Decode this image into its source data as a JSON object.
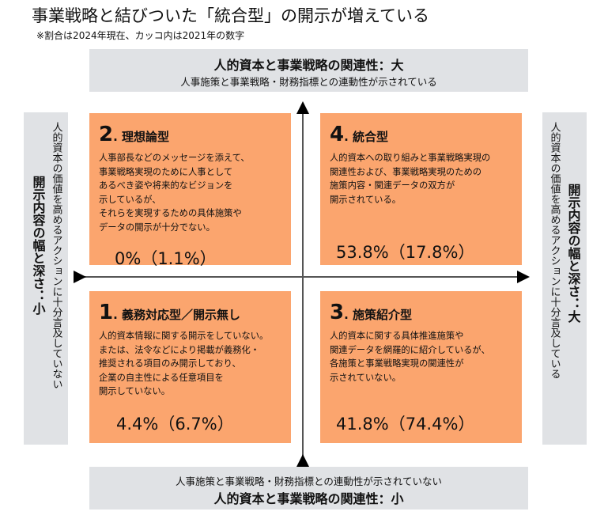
{
  "title": "事業戦略と結びついた「統合型」の開示が増えている",
  "note": "※割合は2024年現在、カッコ内は2021年の数字",
  "top": {
    "bold": "人的資本と事業戦略の関連性：大",
    "sub": "人事施策と事業戦略・財務指標との連動性が示されている"
  },
  "bottom": {
    "sub": "人事施策と事業戦略・財務指標との連動性が示されていない",
    "bold": "人的資本と事業戦略の関連性：小"
  },
  "left": {
    "sub": "人的資本の価値を高めるアクションに十分言及していない",
    "bold": "開示内容の幅と深さ：小"
  },
  "right": {
    "sub": "人的資本の価値を高めるアクションに十分言及している",
    "bold": "開示内容の幅と深さ：大"
  },
  "quadrants": {
    "q2": {
      "num": "2",
      "name": ". 理想論型",
      "desc": "人事部長などのメッセージを添えて、\n事業戦略実現のために人事として\nあるべき姿や将来的なビジョンを\n示しているが、\nそれらを実現するための具体施策や\nデータの開示が十分でない。",
      "pct": "0%（1.1%）"
    },
    "q4": {
      "num": "4",
      "name": ". 統合型",
      "desc": "人的資本への取り組みと事業戦略実現の\n関連性および、事業戦略実現のための\n施策内容・関連データの双方が\n開示されている。",
      "pct": "53.8%（17.8%）"
    },
    "q1": {
      "num": "1",
      "name": ". 義務対応型／開示無し",
      "desc": "人的資本情報に関する開示をしていない。\nまたは、法令などにより掲載が義務化・\n推奨される項目のみ開示しており、\n企業の自主性による任意項目を\n開示していない。",
      "pct": "4.4%（6.7%）"
    },
    "q3": {
      "num": "3",
      "name": ". 施策紹介型",
      "desc": "人的資本に関する具体推進施策や\n関連データを網羅的に紹介しているが、\n各施策と事業戦略実現の関連性が\n示されていない。",
      "pct": "41.8%（74.4%）"
    }
  },
  "colors": {
    "quadrant": "#fba56e",
    "axis_box": "#e0e2e5"
  }
}
